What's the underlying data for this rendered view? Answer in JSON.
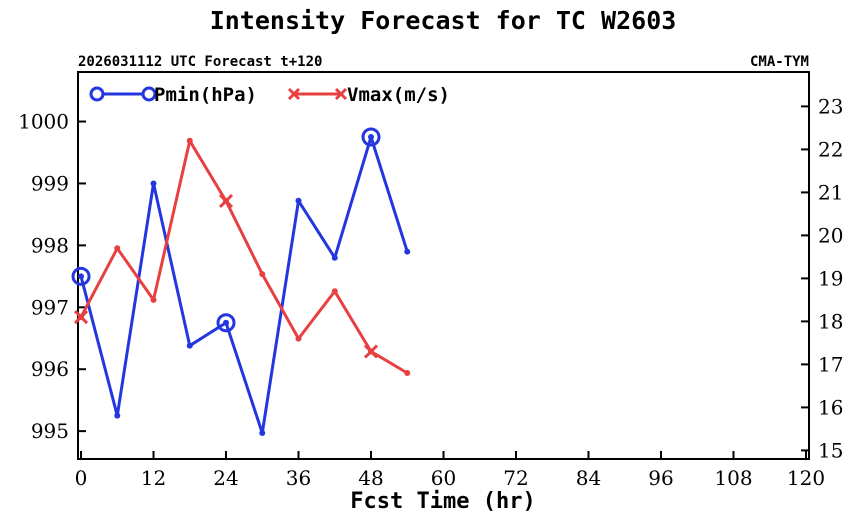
{
  "chart_data": {
    "type": "line",
    "title": "Intensity Forecast for TC W2603",
    "subtitle_left": "2026031112 UTC Forecast t+120",
    "subtitle_right": "CMA-TYM",
    "xlabel": "Fcst Time (hr)",
    "xlim": [
      -0.5,
      120.5
    ],
    "xticks": [
      0,
      12,
      24,
      36,
      48,
      60,
      72,
      84,
      96,
      108,
      120
    ],
    "y_left": {
      "lim": [
        994.55,
        1000.8
      ],
      "ticks": [
        995,
        996,
        997,
        998,
        999,
        1000
      ]
    },
    "y_right": {
      "lim": [
        14.8,
        23.8
      ],
      "ticks": [
        15,
        16,
        17,
        18,
        19,
        20,
        21,
        22,
        23
      ]
    },
    "legend_position": "top-left",
    "series": [
      {
        "name": "Pmin(hPa)",
        "axis": "left",
        "color": "#2436e0",
        "marker": "circle",
        "x": [
          0,
          6,
          12,
          18,
          24,
          30,
          36,
          42,
          48,
          54
        ],
        "values": [
          997.5,
          995.25,
          999.0,
          996.38,
          996.75,
          994.97,
          998.72,
          997.8,
          999.75,
          997.9
        ]
      },
      {
        "name": "Vmax(m/s)",
        "axis": "right",
        "color": "#e84040",
        "marker": "x",
        "x": [
          0,
          6,
          12,
          18,
          24,
          30,
          36,
          42,
          48,
          54
        ],
        "values": [
          18.1,
          19.7,
          18.5,
          22.2,
          20.8,
          19.1,
          17.6,
          18.7,
          17.3,
          16.8
        ]
      }
    ]
  }
}
